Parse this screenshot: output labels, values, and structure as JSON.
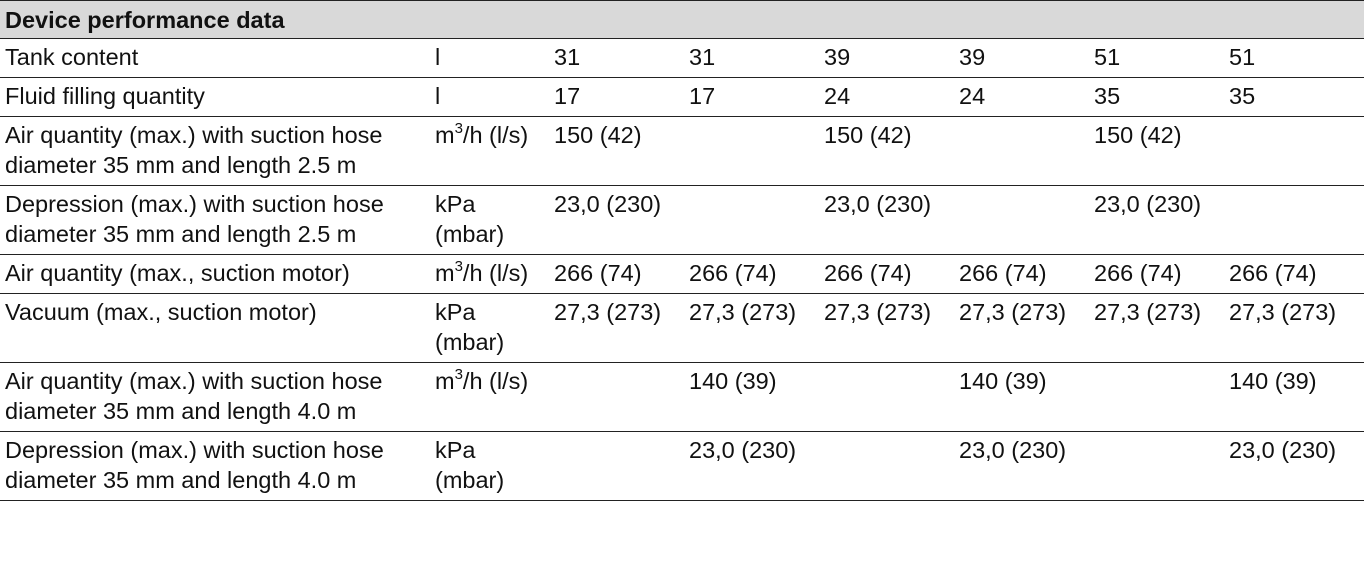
{
  "title": "Device performance data",
  "rows": [
    {
      "label": "Tank content",
      "unit": {
        "pre": "l",
        "sup": "",
        "post": ""
      },
      "values": [
        "31",
        "31",
        "39",
        "39",
        "51",
        "51"
      ]
    },
    {
      "label": "Fluid filling quantity",
      "unit": {
        "pre": "l",
        "sup": "",
        "post": ""
      },
      "values": [
        "17",
        "17",
        "24",
        "24",
        "35",
        "35"
      ]
    },
    {
      "label": "Air quantity (max.) with suction hose diameter 35 mm and length 2.5 m",
      "unit": {
        "pre": "m",
        "sup": "3",
        "post": "/h (l/s)"
      },
      "values": [
        "150 (42)",
        "",
        "150 (42)",
        "",
        "150 (42)",
        ""
      ]
    },
    {
      "label": "Depression (max.) with suction hose diameter 35 mm and length 2.5 m",
      "unit": {
        "pre": "kPa (mbar)",
        "sup": "",
        "post": ""
      },
      "values": [
        "23,0 (230)",
        "",
        "23,0 (230)",
        "",
        "23,0 (230)",
        ""
      ]
    },
    {
      "label": "Air quantity (max., suction motor)",
      "unit": {
        "pre": "m",
        "sup": "3",
        "post": "/h (l/s)"
      },
      "values": [
        "266 (74)",
        "266 (74)",
        "266 (74)",
        "266 (74)",
        "266 (74)",
        "266 (74)"
      ]
    },
    {
      "label": "Vacuum (max., suction motor)",
      "unit": {
        "pre": "kPa (mbar)",
        "sup": "",
        "post": ""
      },
      "values": [
        "27,3 (273)",
        "27,3 (273)",
        "27,3 (273)",
        "27,3 (273)",
        "27,3 (273)",
        "27,3 (273)"
      ]
    },
    {
      "label": "Air quantity (max.) with suction hose diameter 35 mm and length 4.0 m",
      "unit": {
        "pre": "m",
        "sup": "3",
        "post": "/h (l/s)"
      },
      "values": [
        "",
        "140 (39)",
        "",
        "140 (39)",
        "",
        "140 (39)"
      ]
    },
    {
      "label": "Depression (max.) with suction hose diameter 35 mm and length 4.0 m",
      "unit": {
        "pre": "kPa (mbar)",
        "sup": "",
        "post": ""
      },
      "values": [
        "",
        "23,0 (230)",
        "",
        "23,0 (230)",
        "",
        "23,0 (230)"
      ]
    }
  ]
}
